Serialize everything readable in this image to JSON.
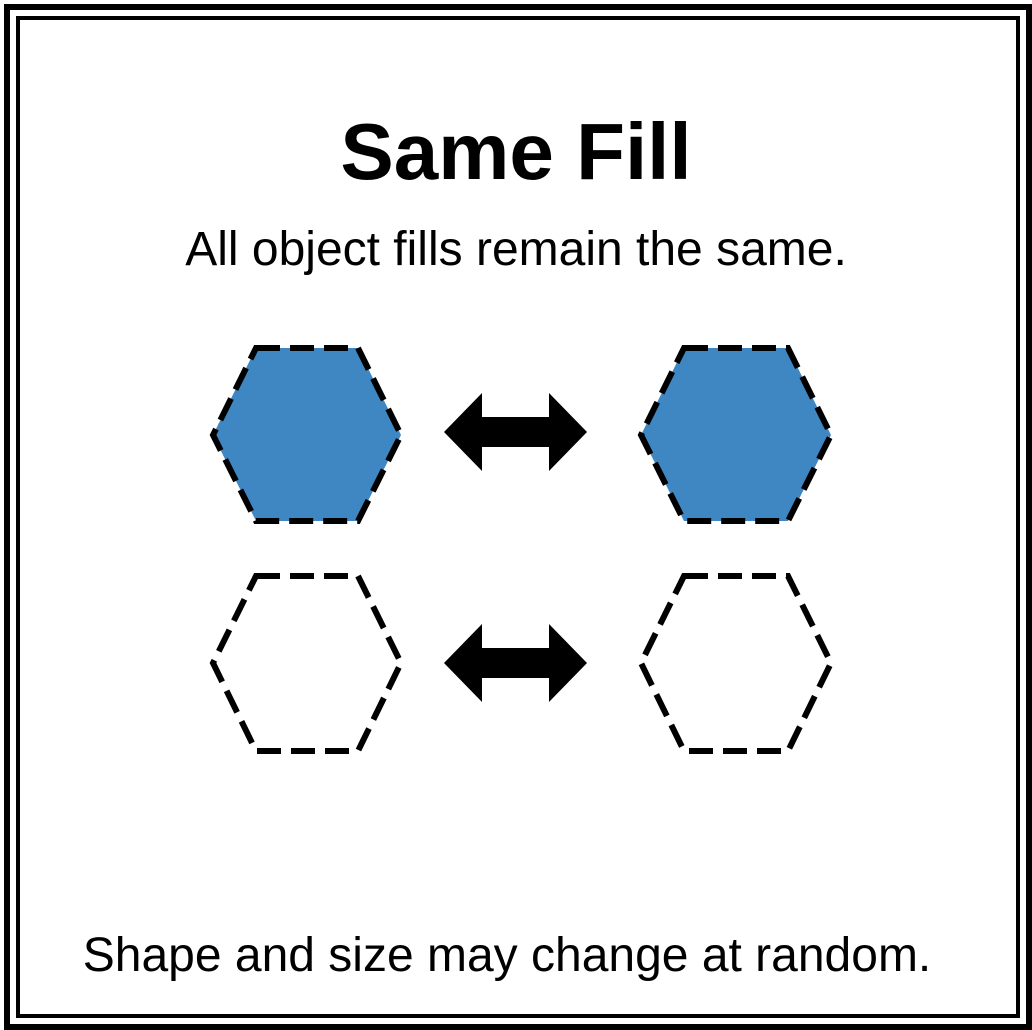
{
  "title": "Same Fill",
  "subtitle": "All object fills remain the same.",
  "footer": "Shape and size may change at random.",
  "colors": {
    "fill_blue": "#3f87c2",
    "outline": "#000000",
    "frame": "#000000",
    "background": "#ffffff"
  },
  "rows": [
    {
      "left_shape": "hexagon",
      "right_shape": "hexagon",
      "fill": "filled",
      "connector": "double-arrow-icon"
    },
    {
      "left_shape": "hexagon",
      "right_shape": "hexagon",
      "fill": "empty",
      "connector": "double-arrow-icon"
    }
  ]
}
